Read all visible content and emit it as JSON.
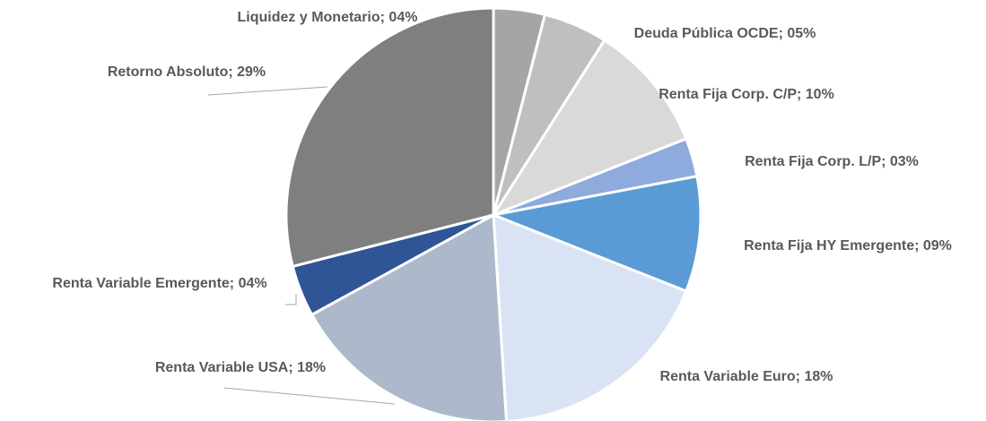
{
  "chart_data": {
    "type": "pie",
    "values": [
      4,
      5,
      10,
      3,
      9,
      18,
      18,
      4,
      29
    ],
    "value_labels": [
      "Liquidez y Monetario; 04%",
      "Deuda Pública OCDE; 05%",
      "Renta Fija Corp. C/P; 10%",
      "Renta Fija Corp. L/P; 03%",
      "Renta Fija HY Emergente; 09%",
      "Renta Variable Euro; 18%",
      "Renta Variable USA; 18%",
      "Renta Variable Emergente; 04%",
      "Retorno Absoluto; 29%"
    ],
    "colors": [
      "#a5a5a5",
      "#bfbfbf",
      "#d9d9d9",
      "#8faadc",
      "#5b9bd5",
      "#dae3f3",
      "#adb9ca",
      "#2f5597",
      "#7f7f7f"
    ]
  }
}
